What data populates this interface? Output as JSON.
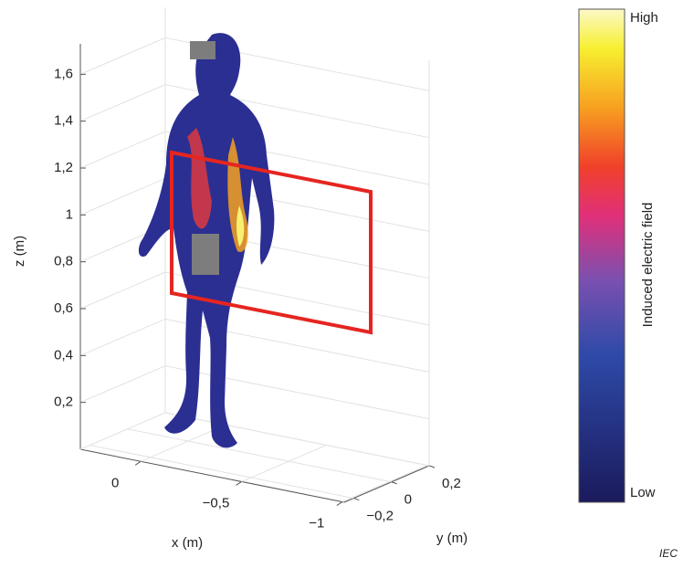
{
  "chart_data": {
    "type": "body3d",
    "xlabel": "x  (m)",
    "ylabel": "y  (m)",
    "zlabel": "z  (m)",
    "xlim": [
      0.3,
      -1.01
    ],
    "xticks": [
      0,
      -0.5,
      -1
    ],
    "xtick_labels_printed": [
      "0",
      "−0,5",
      "−1"
    ],
    "ylim": [
      -0.25,
      0.2
    ],
    "yticks": [
      {
        "value": -0.2,
        "label": "−0,2"
      },
      0,
      {
        "value": 0.2,
        "label": "0,2"
      }
    ],
    "zlim": [
      0,
      1.73
    ],
    "zticks": [
      {
        "value": 0.2,
        "label": "0,2"
      },
      {
        "value": 0.4,
        "label": "0,4"
      },
      {
        "value": 0.6,
        "label": "0,6"
      },
      {
        "value": 0.8,
        "label": "0,8"
      },
      1,
      {
        "value": 1.2,
        "label": "1,2"
      },
      {
        "value": 1.4,
        "label": "1,4"
      },
      {
        "value": 1.6,
        "label": "1,6"
      }
    ],
    "grid": true,
    "colorbar": {
      "label": "Induced electric field",
      "high": "High",
      "low": "Low"
    },
    "source": "IEC"
  }
}
